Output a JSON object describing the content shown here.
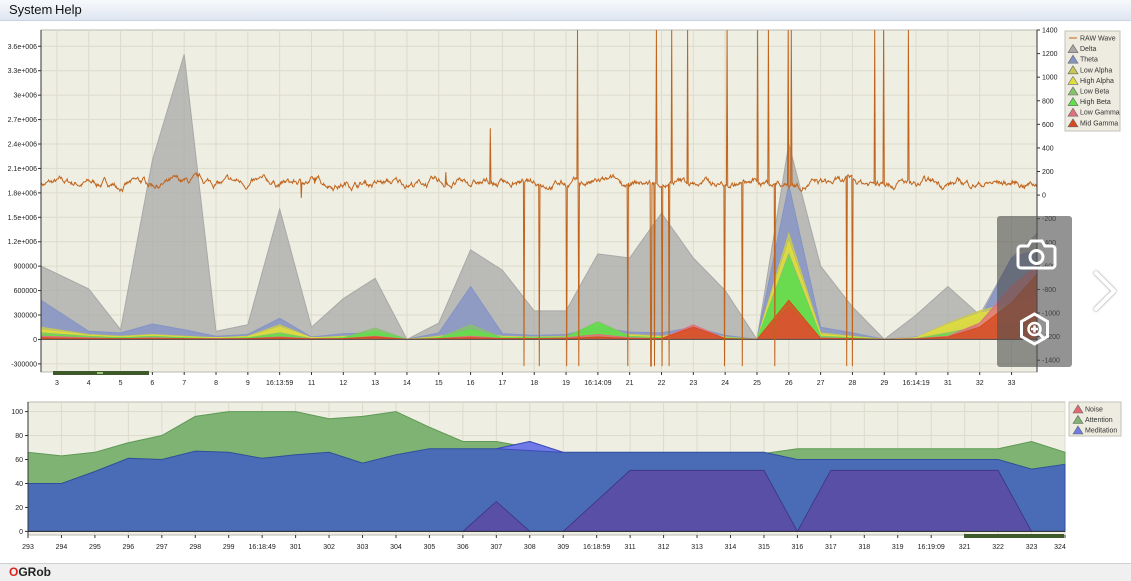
{
  "menu": {
    "system": "System",
    "help": "Help"
  },
  "status": {
    "logo_first": "O",
    "logo_rest": "GRob"
  },
  "overlay": {
    "camera_icon": "camera-icon",
    "zoom_icon": "zoom-in-icon",
    "next_icon": "chevron-right-icon"
  },
  "chart_data": [
    {
      "type": "area",
      "title": "",
      "x_ticks": [
        "3",
        "4",
        "5",
        "6",
        "7",
        "8",
        "9",
        "16:13:59",
        "11",
        "12",
        "13",
        "14",
        "15",
        "16",
        "17",
        "18",
        "19",
        "16:14:09",
        "21",
        "22",
        "23",
        "24",
        "25",
        "26",
        "27",
        "28",
        "29",
        "16:14:19",
        "31",
        "32",
        "33"
      ],
      "x_range": [
        2.5,
        33.8
      ],
      "y_left_ticks": [
        "3.6e+006",
        "3.3e+006",
        "3e+006",
        "2.7e+006",
        "2.4e+006",
        "2.1e+006",
        "1.8e+006",
        "1.5e+006",
        "1.2e+006",
        "900000",
        "600000",
        "300000",
        "0",
        "-300000"
      ],
      "y_left_range": [
        -400000,
        3800000
      ],
      "y_right_ticks": [
        "1400",
        "1200",
        "1000",
        "800",
        "600",
        "400",
        "200",
        "0",
        "-200",
        "-400",
        "-600",
        "-800",
        "-1000",
        "-1200",
        "-1400"
      ],
      "y_right_range": [
        -1500,
        1400
      ],
      "legend": {
        "placement": "right",
        "entries": [
          "RAW Wave",
          "Delta",
          "Theta",
          "Low Alpha",
          "High Alpha",
          "Low Beta",
          "High Beta",
          "Low Gamma",
          "Mid Gamma"
        ]
      },
      "colors": {
        "raw": "#c0641c",
        "delta": "#a8a8a8",
        "theta": "#8494c6",
        "low_alpha": "#c8c856",
        "high_alpha": "#e0de3c",
        "low_beta": "#86c26c",
        "high_beta": "#5fe04a",
        "low_gamma": "#e0707c",
        "mid_gamma": "#d84a1e"
      },
      "series": [
        {
          "name": "Delta",
          "x": [
            2.5,
            4,
            5,
            6,
            7,
            8,
            9,
            10,
            11,
            12,
            13,
            14,
            15,
            16,
            17,
            18,
            19,
            20,
            21,
            22,
            23,
            24,
            25,
            26,
            27,
            28,
            29,
            30,
            31,
            32,
            33,
            33.8
          ],
          "values": [
            900000,
            620000,
            120000,
            2200000,
            3500000,
            100000,
            180000,
            1600000,
            150000,
            500000,
            750000,
            0,
            200000,
            1100000,
            850000,
            350000,
            350000,
            1050000,
            1000000,
            1550000,
            1000000,
            600000,
            0,
            2400000,
            900000,
            400000,
            0,
            300000,
            650000,
            300000,
            1000000,
            1300000
          ]
        },
        {
          "name": "Theta",
          "x": [
            2.5,
            4,
            5,
            6,
            7,
            8,
            9,
            10,
            11,
            12,
            13,
            14,
            15,
            16,
            17,
            18,
            19,
            20,
            21,
            22,
            23,
            24,
            25,
            26,
            27,
            28,
            29,
            30,
            31,
            32,
            33,
            33.8
          ],
          "values": [
            480000,
            100000,
            80000,
            190000,
            120000,
            40000,
            60000,
            260000,
            30000,
            70000,
            80000,
            0,
            80000,
            650000,
            70000,
            50000,
            60000,
            150000,
            90000,
            80000,
            150000,
            50000,
            0,
            1900000,
            150000,
            80000,
            0,
            30000,
            100000,
            250000,
            1000000,
            1100000
          ]
        },
        {
          "name": "Low Alpha",
          "x": [
            2.5,
            4,
            5,
            6,
            7,
            8,
            9,
            10,
            11,
            12,
            13,
            14,
            15,
            16,
            17,
            18,
            19,
            20,
            21,
            22,
            23,
            24,
            25,
            26,
            27,
            28,
            29,
            30,
            31,
            32,
            33,
            33.8
          ],
          "values": [
            150000,
            60000,
            40000,
            60000,
            40000,
            20000,
            40000,
            180000,
            20000,
            40000,
            50000,
            0,
            40000,
            100000,
            40000,
            30000,
            40000,
            100000,
            60000,
            40000,
            100000,
            30000,
            0,
            1300000,
            80000,
            40000,
            0,
            20000,
            200000,
            350000,
            450000,
            500000
          ]
        },
        {
          "name": "High Alpha",
          "x": [
            2.5,
            4,
            5,
            6,
            7,
            8,
            9,
            10,
            11,
            12,
            13,
            14,
            15,
            16,
            17,
            18,
            19,
            20,
            21,
            22,
            23,
            24,
            25,
            26,
            27,
            28,
            29,
            30,
            31,
            32,
            33,
            33.8
          ],
          "values": [
            120000,
            50000,
            30000,
            50000,
            30000,
            20000,
            30000,
            150000,
            20000,
            30000,
            40000,
            0,
            30000,
            80000,
            30000,
            20000,
            30000,
            80000,
            50000,
            30000,
            80000,
            20000,
            0,
            1200000,
            60000,
            30000,
            0,
            20000,
            180000,
            320000,
            400000,
            450000
          ]
        },
        {
          "name": "Low Beta",
          "x": [
            2.5,
            4,
            5,
            6,
            7,
            8,
            9,
            10,
            11,
            12,
            13,
            14,
            15,
            16,
            17,
            18,
            19,
            20,
            21,
            22,
            23,
            24,
            25,
            26,
            27,
            28,
            29,
            30,
            31,
            32,
            33,
            33.8
          ],
          "values": [
            80000,
            40000,
            20000,
            40000,
            20000,
            10000,
            20000,
            80000,
            10000,
            20000,
            140000,
            0,
            20000,
            180000,
            20000,
            20000,
            30000,
            220000,
            40000,
            20000,
            60000,
            20000,
            0,
            1050000,
            40000,
            20000,
            0,
            10000,
            80000,
            160000,
            200000,
            220000
          ]
        },
        {
          "name": "High Beta",
          "x": [
            2.5,
            4,
            5,
            6,
            7,
            8,
            9,
            10,
            11,
            12,
            13,
            14,
            15,
            16,
            17,
            18,
            19,
            20,
            21,
            22,
            23,
            24,
            25,
            26,
            27,
            28,
            29,
            30,
            31,
            32,
            33,
            33.8
          ],
          "values": [
            60000,
            30000,
            20000,
            30000,
            20000,
            10000,
            20000,
            60000,
            10000,
            20000,
            100000,
            0,
            20000,
            120000,
            20000,
            20000,
            30000,
            200000,
            30000,
            20000,
            40000,
            20000,
            0,
            1000000,
            30000,
            20000,
            0,
            10000,
            60000,
            100000,
            150000,
            180000
          ]
        },
        {
          "name": "Low Gamma",
          "x": [
            2.5,
            4,
            5,
            6,
            7,
            8,
            9,
            10,
            11,
            12,
            13,
            14,
            15,
            16,
            17,
            18,
            19,
            20,
            21,
            22,
            23,
            24,
            25,
            26,
            27,
            28,
            29,
            30,
            31,
            32,
            33,
            33.8
          ],
          "values": [
            40000,
            20000,
            10000,
            20000,
            10000,
            10000,
            10000,
            30000,
            10000,
            10000,
            40000,
            0,
            10000,
            40000,
            10000,
            10000,
            20000,
            60000,
            20000,
            10000,
            180000,
            10000,
            0,
            400000,
            20000,
            10000,
            0,
            10000,
            40000,
            200000,
            650000,
            900000
          ]
        },
        {
          "name": "Mid Gamma",
          "x": [
            2.5,
            4,
            5,
            6,
            7,
            8,
            9,
            10,
            11,
            12,
            13,
            14,
            15,
            16,
            17,
            18,
            19,
            20,
            21,
            22,
            23,
            24,
            25,
            26,
            27,
            28,
            29,
            30,
            31,
            32,
            33,
            33.8
          ],
          "values": [
            20000,
            10000,
            10000,
            10000,
            10000,
            5000,
            10000,
            20000,
            5000,
            10000,
            30000,
            0,
            10000,
            20000,
            10000,
            10000,
            10000,
            30000,
            10000,
            10000,
            150000,
            10000,
            0,
            480000,
            10000,
            10000,
            0,
            5000,
            30000,
            150000,
            450000,
            800000
          ]
        }
      ],
      "raw_wave": {
        "name": "RAW Wave",
        "axis": "right",
        "x_range": [
          2.5,
          33.8
        ],
        "seed": 7,
        "approx_values": "noise around 0 to 200, large spikes between 17.5 and 30"
      }
    },
    {
      "type": "area",
      "title": "",
      "x_ticks": [
        "293",
        "294",
        "295",
        "296",
        "297",
        "298",
        "299",
        "16:18:49",
        "301",
        "302",
        "303",
        "304",
        "305",
        "306",
        "307",
        "308",
        "309",
        "16:18:59",
        "311",
        "312",
        "313",
        "314",
        "315",
        "316",
        "317",
        "318",
        "319",
        "16:19:09",
        "321",
        "322",
        "323",
        "324"
      ],
      "x_range": [
        293,
        324
      ],
      "y_ticks": [
        "100",
        "80",
        "60",
        "40",
        "20",
        "0"
      ],
      "y_range": [
        -3,
        108
      ],
      "legend": {
        "placement": "right",
        "entries": [
          "Noise",
          "Attention",
          "Meditation"
        ]
      },
      "colors": {
        "noise": "#e06a70",
        "attention": "#7fb374",
        "meditation": "#6f7ae6",
        "meditation_fill": "#4a6cb6",
        "overlap": "#5a4fa6"
      },
      "series": [
        {
          "name": "Attention",
          "x": [
            293,
            294,
            295,
            296,
            297,
            298,
            299,
            300,
            301,
            302,
            303,
            304,
            305,
            306,
            307,
            308,
            309,
            310,
            311,
            312,
            313,
            314,
            315,
            316,
            317,
            318,
            319,
            320,
            321,
            322,
            323,
            324
          ],
          "values": [
            66,
            63,
            66,
            74,
            80,
            96,
            100,
            100,
            100,
            94,
            96,
            100,
            87,
            75,
            75,
            70,
            65,
            65,
            65,
            65,
            65,
            65,
            65,
            69,
            69,
            69,
            69,
            69,
            69,
            69,
            75,
            66
          ]
        },
        {
          "name": "Meditation",
          "x": [
            293,
            294,
            295,
            296,
            297,
            298,
            299,
            300,
            301,
            302,
            303,
            304,
            305,
            306,
            307,
            308,
            309,
            310,
            311,
            312,
            313,
            314,
            315,
            316,
            317,
            318,
            319,
            320,
            321,
            322,
            323,
            324
          ],
          "values": [
            40,
            40,
            50,
            61,
            60,
            67,
            66,
            61,
            64,
            66,
            57,
            64,
            69,
            69,
            69,
            75,
            66,
            66,
            66,
            66,
            66,
            66,
            66,
            60,
            60,
            60,
            60,
            60,
            60,
            60,
            52,
            56
          ]
        },
        {
          "name": "Noise",
          "x": [
            293,
            324
          ],
          "values": [
            0,
            0
          ]
        }
      ],
      "overlap_regions": [
        [
          [
            306,
            0
          ],
          [
            307,
            25
          ],
          [
            308,
            0
          ]
        ],
        [
          [
            309,
            0
          ],
          [
            311,
            51
          ],
          [
            315,
            51
          ],
          [
            316,
            0
          ]
        ],
        [
          [
            316,
            0
          ],
          [
            317,
            51
          ],
          [
            321,
            51
          ],
          [
            322,
            51
          ],
          [
            323,
            0
          ]
        ]
      ]
    }
  ]
}
